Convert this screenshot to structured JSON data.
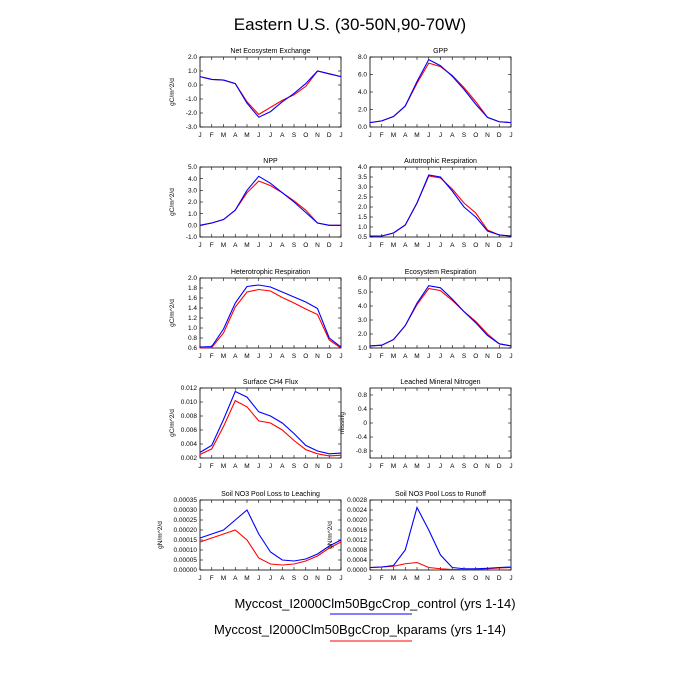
{
  "figure": {
    "title": "Eastern U.S. (30-50N,90-70W)",
    "months": [
      "J",
      "F",
      "M",
      "A",
      "M",
      "J",
      "J",
      "A",
      "S",
      "O",
      "N",
      "D",
      "J"
    ],
    "legend": [
      {
        "label": "Myccost_I2000Clm50BgcCrop_control (yrs 1-14)",
        "color": "#0000ff"
      },
      {
        "label": "Myccost_I2000Clm50BgcCrop_kparams (yrs 1-14)",
        "color": "#ff0000"
      }
    ]
  },
  "chart_data": [
    {
      "type": "line",
      "title": "Net Ecosystem Exchange",
      "ylabel": "gC/m^2/d",
      "ylim": [
        -3.0,
        2.0
      ],
      "yticks": [
        -3.0,
        -2.0,
        -1.0,
        0.0,
        1.0,
        2.0
      ],
      "ytick_labels": [
        "-3.0",
        "-2.0",
        "-1.0",
        "0.0",
        "1.0",
        "2.0"
      ],
      "series": [
        {
          "name": "control",
          "values": [
            0.6,
            0.4,
            0.35,
            0.1,
            -1.3,
            -2.3,
            -1.9,
            -1.2,
            -0.6,
            0.1,
            1.0,
            0.8,
            0.6
          ]
        },
        {
          "name": "kparams",
          "values": [
            0.6,
            0.4,
            0.35,
            0.1,
            -1.2,
            -2.1,
            -1.6,
            -1.1,
            -0.7,
            -0.1,
            1.0,
            0.8,
            0.6
          ]
        }
      ]
    },
    {
      "type": "line",
      "title": "GPP",
      "ylabel": "",
      "ylim": [
        0.0,
        8.0
      ],
      "yticks": [
        0.0,
        2.0,
        4.0,
        6.0,
        8.0
      ],
      "ytick_labels": [
        "0.0",
        "2.0",
        "4.0",
        "6.0",
        "8.0"
      ],
      "series": [
        {
          "name": "control",
          "values": [
            0.5,
            0.7,
            1.2,
            2.4,
            5.2,
            7.7,
            7.0,
            5.8,
            4.3,
            2.6,
            1.1,
            0.6,
            0.5
          ]
        },
        {
          "name": "kparams",
          "values": [
            0.5,
            0.7,
            1.2,
            2.4,
            5.0,
            7.3,
            6.9,
            5.9,
            4.5,
            2.9,
            1.1,
            0.6,
            0.5
          ]
        }
      ]
    },
    {
      "type": "line",
      "title": "NPP",
      "ylabel": "gC/m^2/d",
      "ylim": [
        -1.0,
        5.0
      ],
      "yticks": [
        -1.0,
        0.0,
        1.0,
        2.0,
        3.0,
        4.0,
        5.0
      ],
      "ytick_labels": [
        "-1.0",
        "0.0",
        "1.0",
        "2.0",
        "3.0",
        "4.0",
        "5.0"
      ],
      "series": [
        {
          "name": "control",
          "values": [
            0.0,
            0.2,
            0.5,
            1.3,
            3.0,
            4.2,
            3.6,
            2.8,
            2.0,
            1.1,
            0.2,
            0.0,
            0.0
          ]
        },
        {
          "name": "kparams",
          "values": [
            0.0,
            0.2,
            0.5,
            1.3,
            2.8,
            3.8,
            3.4,
            2.8,
            2.1,
            1.3,
            0.2,
            0.0,
            0.0
          ]
        }
      ]
    },
    {
      "type": "line",
      "title": "Autotrophic Respiration",
      "ylabel": "",
      "ylim": [
        0.5,
        4.0
      ],
      "yticks": [
        0.5,
        1.0,
        1.5,
        2.0,
        2.5,
        3.0,
        3.5,
        4.0
      ],
      "ytick_labels": [
        "0.5",
        "1.0",
        "1.5",
        "2.0",
        "2.5",
        "3.0",
        "3.5",
        "4.0"
      ],
      "series": [
        {
          "name": "control",
          "values": [
            0.55,
            0.55,
            0.7,
            1.1,
            2.2,
            3.6,
            3.5,
            2.8,
            2.0,
            1.5,
            0.8,
            0.6,
            0.55
          ]
        },
        {
          "name": "kparams",
          "values": [
            0.55,
            0.55,
            0.7,
            1.1,
            2.2,
            3.55,
            3.45,
            2.9,
            2.2,
            1.7,
            0.85,
            0.6,
            0.55
          ]
        }
      ]
    },
    {
      "type": "line",
      "title": "Heterotrophic Respiration",
      "ylabel": "gC/m^2/d",
      "ylim": [
        0.6,
        2.0
      ],
      "yticks": [
        0.6,
        0.8,
        1.0,
        1.2,
        1.4,
        1.6,
        1.8,
        2.0
      ],
      "ytick_labels": [
        "0.6",
        "0.8",
        "1.0",
        "1.2",
        "1.4",
        "1.6",
        "1.8",
        "2.0"
      ],
      "series": [
        {
          "name": "control",
          "values": [
            0.62,
            0.63,
            0.98,
            1.5,
            1.83,
            1.86,
            1.82,
            1.72,
            1.62,
            1.52,
            1.39,
            0.8,
            0.62
          ]
        },
        {
          "name": "kparams",
          "values": [
            0.6,
            0.61,
            0.9,
            1.42,
            1.72,
            1.77,
            1.74,
            1.61,
            1.5,
            1.38,
            1.27,
            0.76,
            0.6
          ]
        }
      ]
    },
    {
      "type": "line",
      "title": "Ecosystem Respiration",
      "ylabel": "",
      "ylim": [
        1.0,
        6.0
      ],
      "yticks": [
        1.0,
        2.0,
        3.0,
        4.0,
        5.0,
        6.0
      ],
      "ytick_labels": [
        "1.0",
        "2.0",
        "3.0",
        "4.0",
        "5.0",
        "6.0"
      ],
      "series": [
        {
          "name": "control",
          "values": [
            1.15,
            1.2,
            1.6,
            2.6,
            4.2,
            5.45,
            5.3,
            4.5,
            3.6,
            2.8,
            1.9,
            1.3,
            1.15
          ]
        },
        {
          "name": "kparams",
          "values": [
            1.15,
            1.2,
            1.6,
            2.6,
            4.1,
            5.25,
            5.1,
            4.4,
            3.6,
            2.9,
            2.0,
            1.3,
            1.15
          ]
        }
      ]
    },
    {
      "type": "line",
      "title": "Surface CH4 Flux",
      "ylabel": "gC/m^2/d",
      "ylim": [
        0.002,
        0.012
      ],
      "yticks": [
        0.002,
        0.004,
        0.006,
        0.008,
        0.01,
        0.012
      ],
      "ytick_labels": [
        "0.002",
        "0.004",
        "0.006",
        "0.008",
        "0.010",
        "0.012"
      ],
      "series": [
        {
          "name": "control",
          "values": [
            0.0028,
            0.0038,
            0.0075,
            0.0115,
            0.0107,
            0.0086,
            0.008,
            0.007,
            0.0055,
            0.0038,
            0.003,
            0.0026,
            0.0027
          ]
        },
        {
          "name": "kparams",
          "values": [
            0.0025,
            0.0033,
            0.0065,
            0.0102,
            0.0093,
            0.0073,
            0.007,
            0.006,
            0.0045,
            0.0032,
            0.0026,
            0.0023,
            0.0024
          ]
        }
      ]
    },
    {
      "type": "line",
      "title": "Leached Mineral Nitrogen",
      "ylabel": "missing",
      "ylim": [
        -1.0,
        1.0
      ],
      "yticks": [
        -0.8,
        -0.4,
        0.0,
        0.4,
        0.8
      ],
      "ytick_labels": [
        "-0.8",
        "-0.4",
        "0",
        "0.4",
        "0.8"
      ],
      "series": []
    },
    {
      "type": "line",
      "title": "Soil NO3 Pool Loss to Leaching",
      "ylabel": "gN/m^2/d",
      "ylim": [
        0.0,
        0.00035
      ],
      "yticks": [
        0.0,
        5e-05,
        0.0001,
        0.00015,
        0.0002,
        0.00025,
        0.0003,
        0.00035
      ],
      "ytick_labels": [
        "0.00000",
        "0.00005",
        "0.00010",
        "0.00015",
        "0.00020",
        "0.00025",
        "0.00030",
        "0.00035"
      ],
      "series": [
        {
          "name": "control",
          "values": [
            0.00016,
            0.00018,
            0.0002,
            0.00025,
            0.0003,
            0.00018,
            9e-05,
            5e-05,
            4.5e-05,
            5.5e-05,
            8e-05,
            0.00012,
            0.00015
          ]
        },
        {
          "name": "kparams",
          "values": [
            0.00014,
            0.00016,
            0.00018,
            0.0002,
            0.00015,
            6e-05,
            3e-05,
            2.5e-05,
            3e-05,
            4.5e-05,
            7e-05,
            0.00011,
            0.00014
          ]
        }
      ]
    },
    {
      "type": "line",
      "title": "Soil NO3 Pool Loss to Runoff",
      "ylabel": "gN/m^2/d",
      "ylim": [
        0.0,
        0.0028
      ],
      "yticks": [
        0.0,
        0.0004,
        0.0008,
        0.0012,
        0.0016,
        0.002,
        0.0024,
        0.0028
      ],
      "ytick_labels": [
        "0.0000",
        "0.0004",
        "0.0008",
        "0.0012",
        "0.0016",
        "0.0020",
        "0.0024",
        "0.0028"
      ],
      "series": [
        {
          "name": "control",
          "values": [
            0.0001,
            0.00012,
            0.00018,
            0.0008,
            0.0025,
            0.0016,
            0.0006,
            0.0001,
            5e-05,
            5e-05,
            7e-05,
            0.0001,
            0.00012
          ]
        },
        {
          "name": "kparams",
          "values": [
            0.0001,
            0.00012,
            0.00015,
            0.00025,
            0.0003,
            0.0001,
            5e-05,
            2e-05,
            2e-05,
            3e-05,
            5e-05,
            8e-05,
            0.0001
          ]
        }
      ]
    }
  ]
}
